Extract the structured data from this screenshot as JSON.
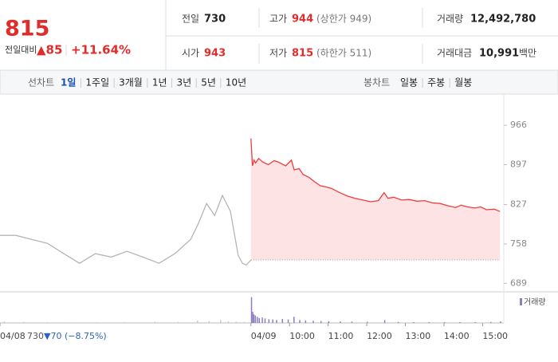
{
  "header": {
    "price": "815",
    "change_label": "전일대비",
    "change": "▲85",
    "change_rate": "+11.64%",
    "stats": [
      {
        "label": "전일",
        "value": "730"
      },
      {
        "label": "고가",
        "value": "944",
        "note": "(상한가 949)"
      },
      {
        "label": "거래량",
        "value": "12,492,780"
      },
      {
        "label": "시가",
        "value": "943"
      },
      {
        "label": "저가",
        "value": "815",
        "note": "(하한가 511)"
      },
      {
        "label": "거래대금",
        "value": "10,991",
        "unit": "백만"
      }
    ]
  },
  "line_tabs": {
    "label": "선차트",
    "items": [
      "1일",
      "1주일",
      "3개월",
      "1년",
      "3년",
      "5년",
      "10년"
    ],
    "active": 0
  },
  "candle_tabs": {
    "label": "봉차트",
    "items": [
      "일봉",
      "주봉",
      "월봉"
    ]
  },
  "chart_data": {
    "type": "line",
    "xlim": [
      0,
      13.05
    ],
    "xticks": [
      {
        "value": 0,
        "label": "04/08"
      },
      {
        "value": 6.5,
        "label": "04/09"
      },
      {
        "value": 7.5,
        "label": "10:00"
      },
      {
        "value": 8.5,
        "label": "11:00"
      },
      {
        "value": 9.5,
        "label": "12:00"
      },
      {
        "value": 10.5,
        "label": "13:00"
      },
      {
        "value": 11.5,
        "label": "14:00"
      },
      {
        "value": 12.5,
        "label": "15:00"
      }
    ],
    "ylim": [
      674,
      1018
    ],
    "yticks": [
      689,
      758,
      827,
      897,
      966
    ],
    "reference": 730,
    "prev_close_label": "730",
    "prev_change_label": "▼70 (−8.75%)",
    "series": [
      {
        "color": "#b5b5b5",
        "x": [
          0,
          0.41,
          0.82,
          1.23,
          1.65,
          2.06,
          2.47,
          2.88,
          3.29,
          3.7,
          4.12,
          4.53,
          4.94,
          5.14,
          5.35,
          5.56,
          5.76,
          5.97,
          6.17,
          6.28,
          6.38,
          6.5
        ],
        "values": [
          773,
          773,
          766,
          759,
          741,
          724,
          741,
          735,
          745,
          735,
          724,
          741,
          766,
          794,
          829,
          808,
          843,
          815,
          738,
          724,
          721,
          730
        ]
      },
      {
        "color": "#f03c3c",
        "fill": "#fde3e3",
        "x": [
          6.5,
          6.54,
          6.58,
          6.62,
          6.7,
          6.8,
          6.95,
          7.1,
          7.2,
          7.4,
          7.55,
          7.62,
          7.75,
          7.85,
          8.0,
          8.15,
          8.3,
          8.45,
          8.6,
          8.8,
          9.0,
          9.2,
          9.4,
          9.6,
          9.8,
          9.95,
          10.05,
          10.2,
          10.4,
          10.6,
          10.8,
          11.0,
          11.2,
          11.4,
          11.6,
          11.8,
          11.95,
          12.1,
          12.3,
          12.45,
          12.6,
          12.8,
          12.95
        ],
        "values": [
          943,
          895,
          905,
          900,
          908,
          902,
          897,
          904,
          902,
          895,
          905,
          888,
          890,
          880,
          875,
          867,
          860,
          858,
          855,
          848,
          842,
          838,
          835,
          832,
          834,
          848,
          838,
          840,
          835,
          836,
          833,
          834,
          830,
          829,
          825,
          822,
          826,
          823,
          821,
          823,
          818,
          819,
          815
        ]
      }
    ],
    "volume": {
      "name": "거래량",
      "color": "#8e7cc3",
      "prev_color": "#c8c8c8",
      "split": 6.5,
      "ylim": [
        0,
        1200000
      ],
      "x": [
        0.1,
        0.6,
        1.2,
        1.8,
        2.5,
        3.2,
        4.0,
        4.6,
        5.1,
        5.4,
        5.7,
        5.9,
        6.1,
        6.3,
        6.5,
        6.53,
        6.56,
        6.6,
        6.65,
        6.7,
        6.78,
        6.85,
        6.95,
        7.05,
        7.15,
        7.3,
        7.45,
        7.6,
        7.75,
        7.9,
        8.1,
        8.3,
        8.5,
        8.8,
        9.1,
        9.5,
        9.95,
        10.3,
        10.7,
        11.1,
        11.5,
        11.9,
        12.3,
        12.7,
        12.95
      ],
      "values": [
        60000,
        40000,
        30000,
        25000,
        30000,
        35000,
        50000,
        40000,
        90000,
        70000,
        120000,
        60000,
        50000,
        40000,
        1050000,
        450000,
        350000,
        300000,
        250000,
        200000,
        220000,
        180000,
        150000,
        140000,
        120000,
        160000,
        140000,
        250000,
        120000,
        100000,
        90000,
        80000,
        70000,
        60000,
        50000,
        45000,
        120000,
        40000,
        35000,
        30000,
        30000,
        35000,
        30000,
        40000,
        60000
      ]
    }
  }
}
